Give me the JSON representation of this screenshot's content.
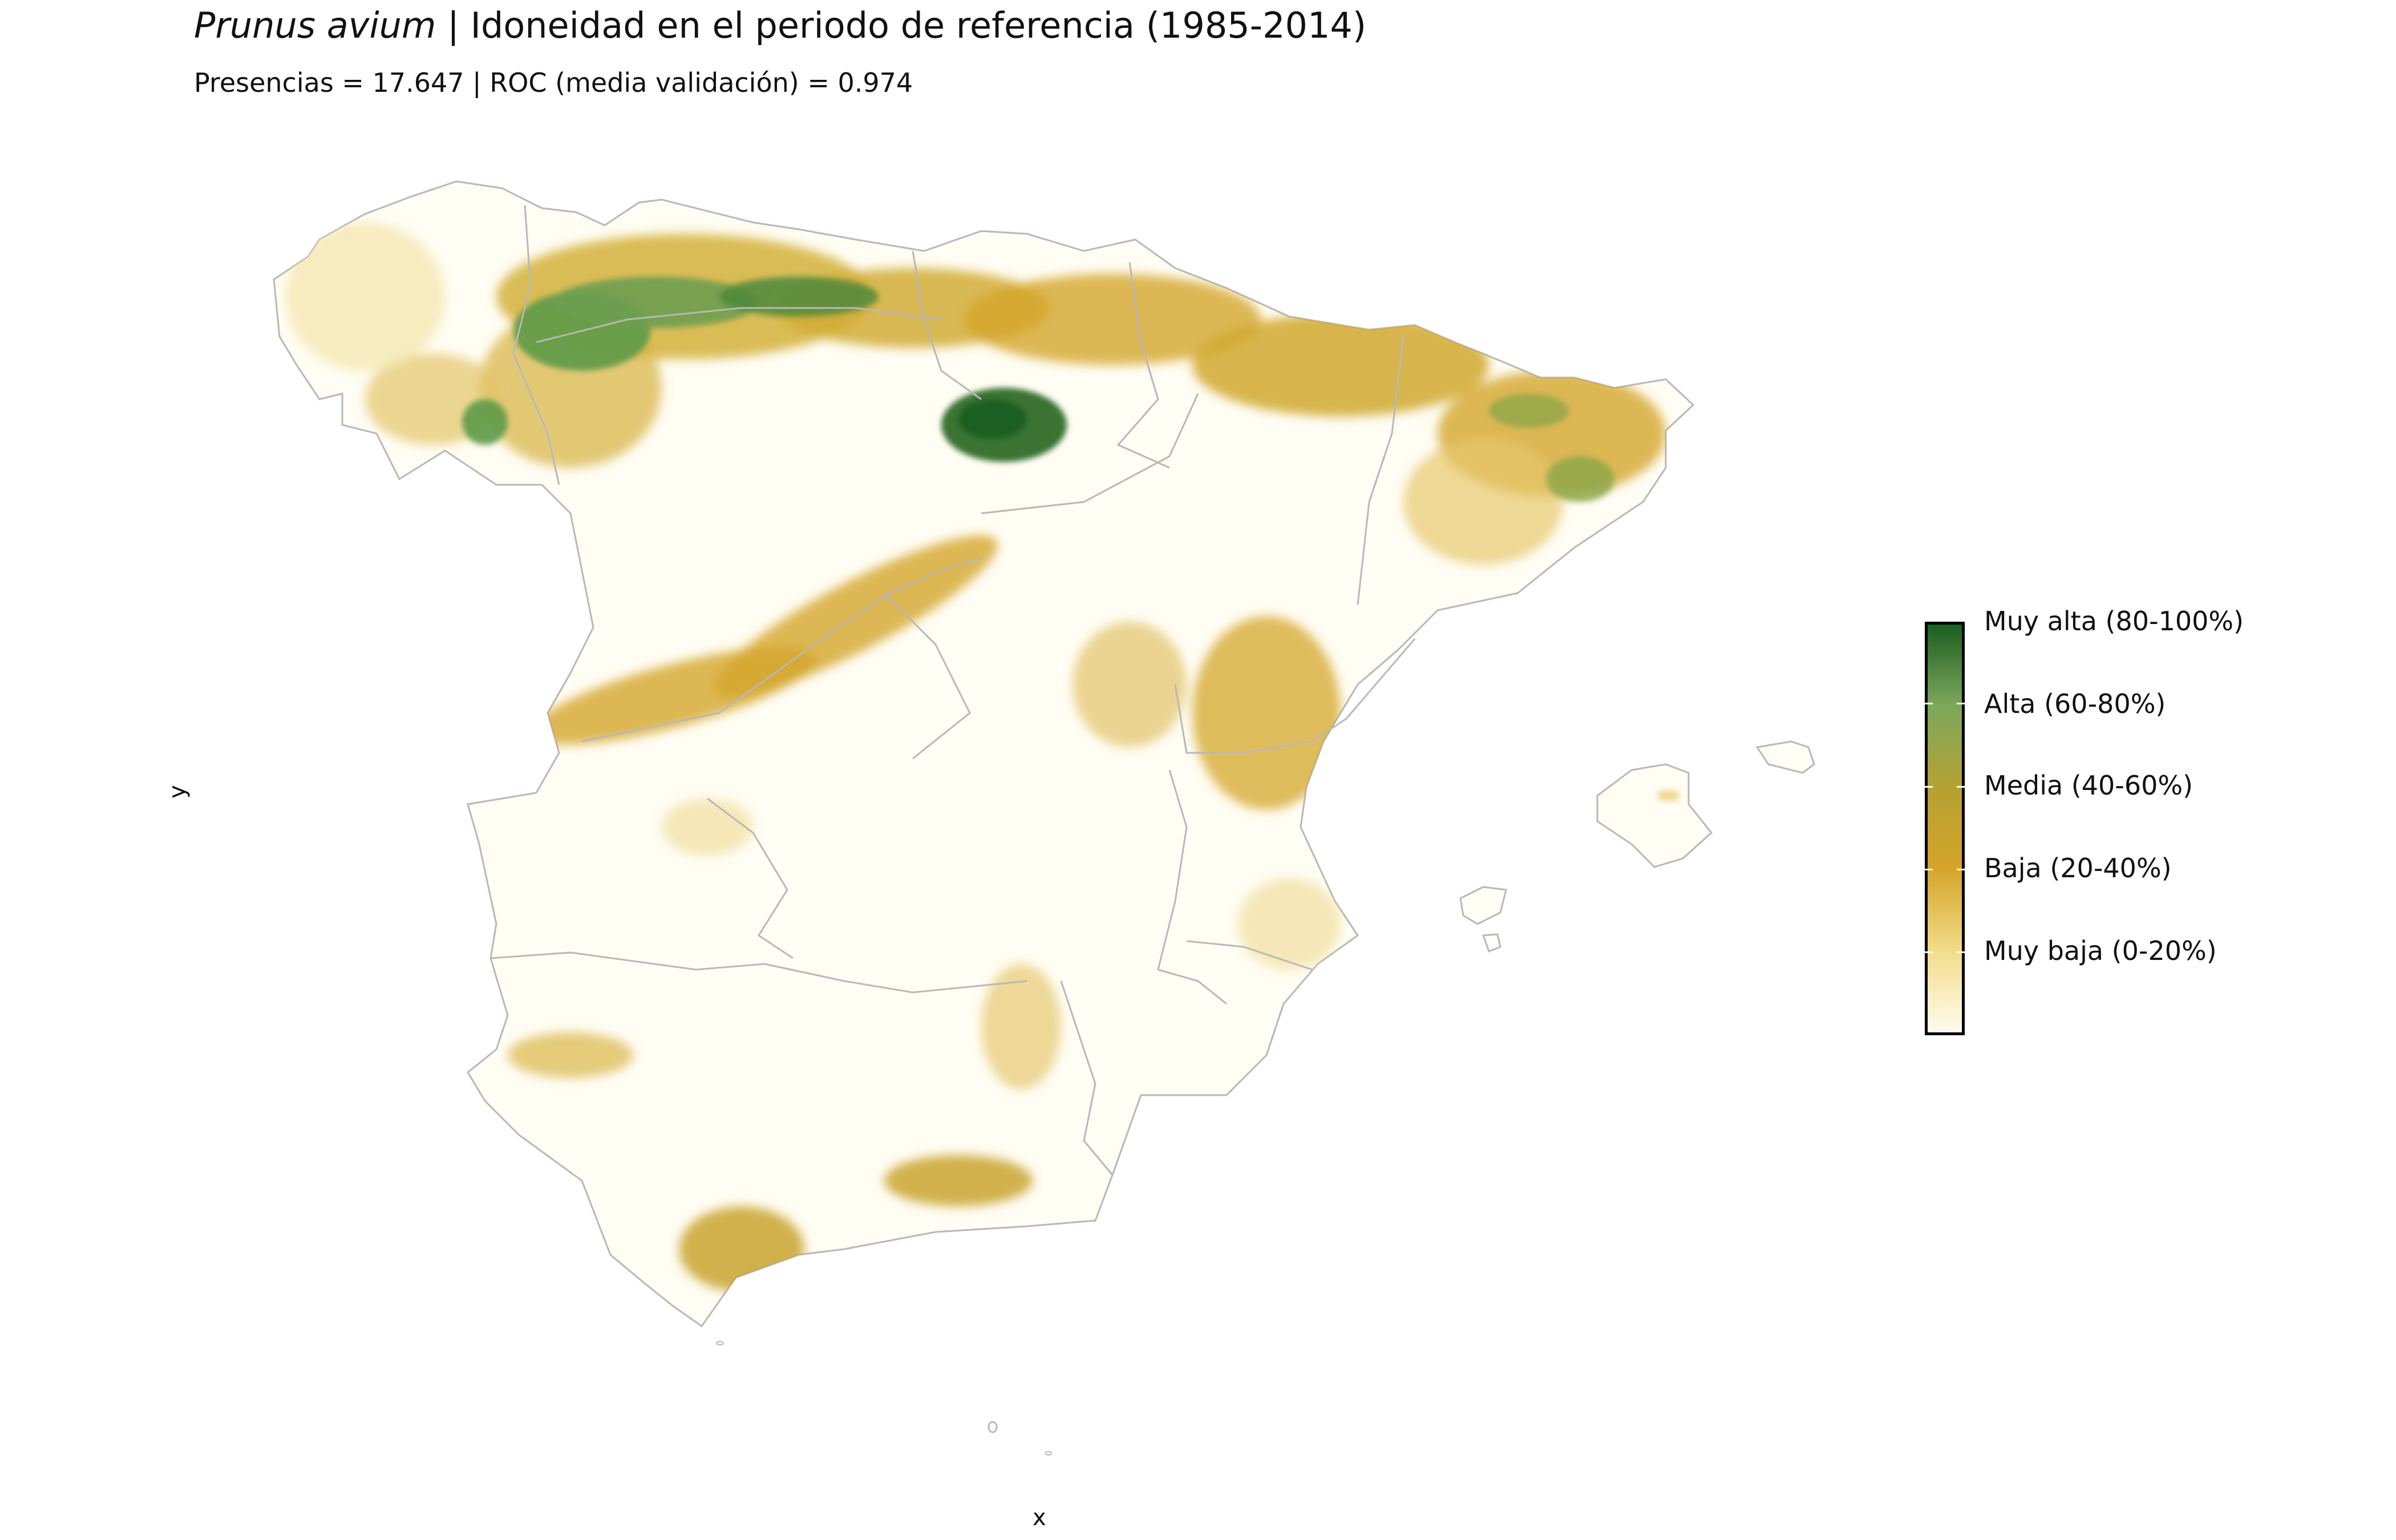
{
  "header": {
    "title_species": "Prunus avium",
    "title_rest": " | Idoneidad en el periodo de referencia (1985-2014)",
    "subtitle": "Presencias = 17.647  |  ROC (media validación) = 0.974"
  },
  "axes": {
    "xlabel": "x",
    "ylabel": "y"
  },
  "legend": {
    "items": [
      {
        "label": "Muy alta (80-100%)",
        "color": "#1b5e20"
      },
      {
        "label": "Alta (60-80%)",
        "color": "#7da85c"
      },
      {
        "label": "Media (40-60%)",
        "color": "#b5a132"
      },
      {
        "label": "Baja (20-40%)",
        "color": "#d4a529"
      },
      {
        "label": "Muy baja (0-20%)",
        "color": "#f3dc8a"
      }
    ],
    "gradient_colors": [
      "#1b5e20",
      "#7da85c",
      "#b5a132",
      "#d4a529",
      "#f3dc8a",
      "#fffbee"
    ]
  },
  "map": {
    "region_fill": "#fffdf4",
    "border_color": "#b8b8b8"
  }
}
